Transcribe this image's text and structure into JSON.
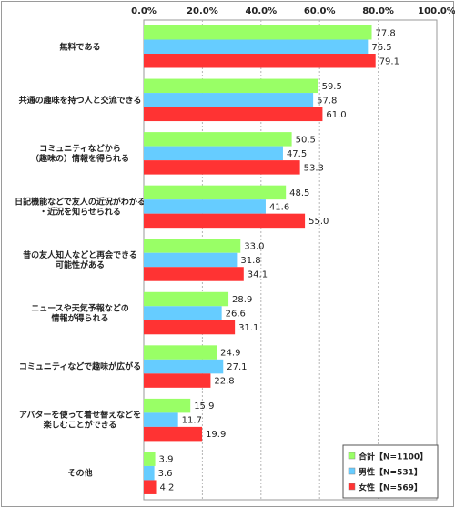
{
  "chart_data": {
    "type": "bar",
    "orientation": "horizontal",
    "title": "",
    "xlabel": "",
    "ylabel": "",
    "xlim": [
      0,
      100
    ],
    "ticks": [
      "0.0%",
      "20.0%",
      "40.0%",
      "60.0%",
      "80.0%",
      "100.0%"
    ],
    "grid": true,
    "legend_position": "bottom-right",
    "categories": [
      "無料である",
      "共通の趣味を持つ人と交流できる",
      "コミュニティなどから\n（趣味の）情報を得られる",
      "日記機能などで友人の近況がわかる\n・近況を知らせられる",
      "昔の友人知人などと再会できる\n可能性がある",
      "ニュースや天気予報などの\n情報が得られる",
      "コミュニティなどで趣味が広がる",
      "アバターを使って着せ替えなどを\n楽しむことができる",
      "その他"
    ],
    "series": [
      {
        "name": "合計【N=1100】",
        "color": "#99ff66",
        "values": [
          77.8,
          59.5,
          50.5,
          48.5,
          33.0,
          28.9,
          24.9,
          15.9,
          3.9
        ],
        "labels": [
          "77.8",
          "59.5",
          "50.5",
          "48.5",
          "33.0",
          "28.9",
          "24.9",
          "15.9",
          "3.9"
        ]
      },
      {
        "name": "男性【N=531】",
        "color": "#66ccff",
        "values": [
          76.5,
          57.8,
          47.5,
          41.6,
          31.8,
          26.6,
          27.1,
          11.7,
          3.6
        ],
        "labels": [
          "76.5",
          "57.8",
          "47.5",
          "41.6",
          "31.8",
          "26.6",
          "27.1",
          "11.7",
          "3.6"
        ]
      },
      {
        "name": "女性【N=569】",
        "color": "#ff3333",
        "values": [
          79.1,
          61.0,
          53.3,
          55.0,
          34.1,
          31.1,
          22.8,
          19.9,
          4.2
        ],
        "labels": [
          "79.1",
          "61.0",
          "53.3",
          "55.0",
          "34.1",
          "31.1",
          "22.8",
          "19.9",
          "4.2"
        ]
      }
    ]
  }
}
